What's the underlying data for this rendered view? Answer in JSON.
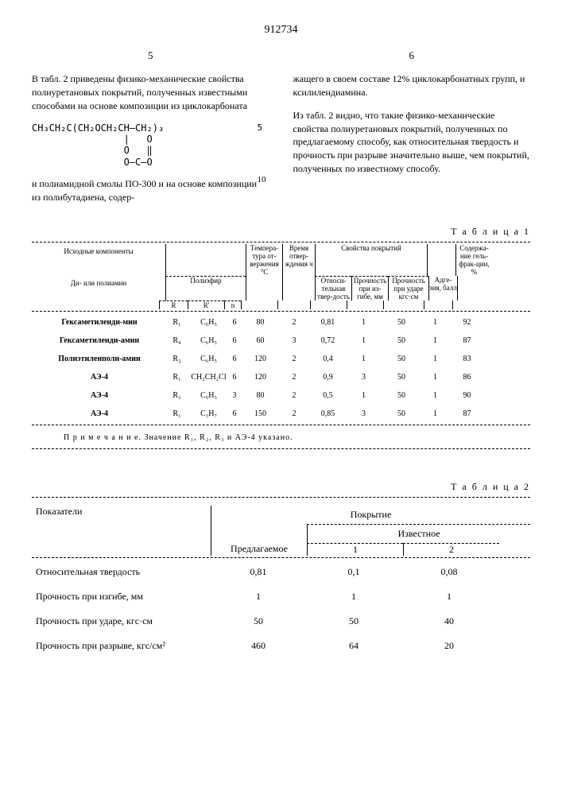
{
  "doc_number": "912734",
  "page_left": "5",
  "page_right": "6",
  "para_left_1": "В табл. 2 приведены физико-механические свойства полиуретановых покрытий, полученных известными способами на основе композиции из циклокарбоната",
  "formula_line1": "CH₃CH₂C(CH₂OCH₂CH—CH₂)₃",
  "formula_line2": "                |   O",
  "formula_line3": "                O   ‖",
  "formula_line4": "                O—C—O",
  "para_left_2": "и полиамидной смолы ПО-300 и на основе композиции из полибутадиена, содер-",
  "para_right_1": "жащего в своем составе 12% циклокарбонатных групп, и ксилилендиамина.",
  "para_right_2": "Из табл. 2 видно, что такие физико-механические свойства полиуретановых покрытий, полученных по предлагаемому способу, как относительная твердость и прочность при разрыве значительно выше, чем покрытий, полученных по известному способу.",
  "line_5": "5",
  "line_10": "10",
  "table1": {
    "label": "Т а б л и ц а 1",
    "headers": {
      "h1": "Исходные компоненты",
      "h2": "Ди- или полиамин",
      "h3": "Полиэфир",
      "h4": "R",
      "h5": "R'",
      "h6": "n",
      "h7": "Темпера-тура от-вержения °C",
      "h8": "Время отвер-ждения ч",
      "h9": "Свойства покрытий",
      "h10": "Относи-тельная твер-дость",
      "h11": "Прочность при из-гибе, мм",
      "h12": "Прочность при ударе кгс·см",
      "h13": "Адге-зия, балл",
      "h14": "Содержа-ние гель-фрак-ции, %"
    },
    "rows": [
      {
        "name": "Гексаметиленди-мин",
        "r": "R₁",
        "rp": "C₆H₅",
        "n": "6",
        "temp": "80",
        "time": "2",
        "hard": "0,81",
        "bend": "1",
        "impact": "50",
        "adh": "1",
        "gel": "92"
      },
      {
        "name": "Гексаметиленди-амин",
        "r": "R₄",
        "rp": "C₆H₅",
        "n": "6",
        "temp": "60",
        "time": "3",
        "hard": "0,72",
        "bend": "1",
        "impact": "50",
        "adh": "1",
        "gel": "87"
      },
      {
        "name": "Полиэтиленполи-амин",
        "r": "R₂",
        "rp": "C₆H₅",
        "n": "6",
        "temp": "120",
        "time": "2",
        "hard": "0,4",
        "bend": "1",
        "impact": "50",
        "adh": "1",
        "gel": "83"
      },
      {
        "name": "АЭ-4",
        "r": "R₁",
        "rp": "CH₂CH₂Cl",
        "n": "6",
        "temp": "120",
        "time": "2",
        "hard": "0,9",
        "bend": "3",
        "impact": "50",
        "adh": "1",
        "gel": "86"
      },
      {
        "name": "АЭ-4",
        "r": "R₃",
        "rp": "C₆H₅",
        "n": "3",
        "temp": "80",
        "time": "2",
        "hard": "0,5",
        "bend": "1",
        "impact": "50",
        "adh": "1",
        "gel": "90"
      },
      {
        "name": "АЭ-4",
        "r": "R₁",
        "rp": "C₃H₇",
        "n": "6",
        "temp": "150",
        "time": "2",
        "hard": "0,85",
        "bend": "3",
        "impact": "50",
        "adh": "1",
        "gel": "87"
      }
    ],
    "note": "П р и м е ч а н и е. Значение R₁, R₂, R₃ и АЭ-4 указано."
  },
  "table2": {
    "label": "Т а б л и ц а 2",
    "headers": {
      "h1": "Показатели",
      "h2": "Покрытие",
      "h3": "Предлагаемое",
      "h4": "Известное",
      "h5": "1",
      "h6": "2"
    },
    "rows": [
      {
        "name": "Относительная твердость",
        "v1": "0,81",
        "v2": "0,1",
        "v3": "0,08"
      },
      {
        "name": "Прочность при изгибе, мм",
        "v1": "1",
        "v2": "1",
        "v3": "1"
      },
      {
        "name": "Прочность при ударе, кгс·см",
        "v1": "50",
        "v2": "50",
        "v3": "40"
      },
      {
        "name": "Прочность при разрыве, кгс/см²",
        "v1": "460",
        "v2": "64",
        "v3": "20"
      }
    ]
  }
}
